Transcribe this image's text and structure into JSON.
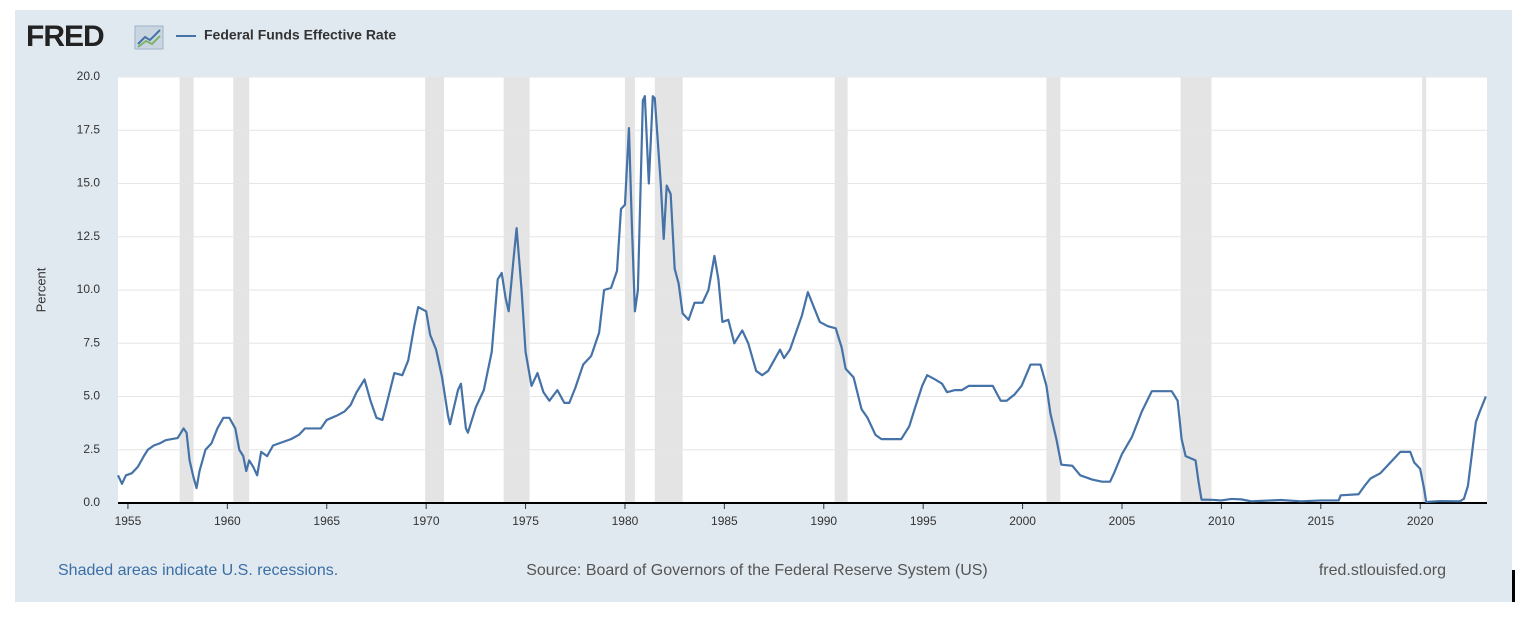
{
  "logo": "FRED",
  "chart_data": {
    "type": "line",
    "series": [
      {
        "name": "Federal Funds Effective Rate",
        "color": "#4572a7",
        "values": [
          1.3,
          0.9,
          1.3,
          1.4,
          1.7,
          2.2,
          2.5,
          2.7,
          2.8,
          2.95,
          3.0,
          3.05,
          3.5,
          3.3,
          2.0,
          1.2,
          0.7,
          1.5,
          2.5,
          2.8,
          3.5,
          4.0,
          4.0,
          3.5,
          2.5,
          2.2,
          1.5,
          2.0,
          1.7,
          1.3,
          2.4,
          2.2,
          2.7,
          2.8,
          2.9,
          3.0,
          3.2,
          3.5,
          3.5,
          3.5,
          3.9,
          4.1,
          4.3,
          4.6,
          5.2,
          5.8,
          4.8,
          4.0,
          3.9,
          4.6,
          6.1,
          6.0,
          6.7,
          8.3,
          9.2,
          9.0,
          7.9,
          7.2,
          5.9,
          4.1,
          3.7,
          5.3,
          5.6,
          3.5,
          3.3,
          4.5,
          5.3,
          7.1,
          10.5,
          10.8,
          9.6,
          9.0,
          11.5,
          12.9,
          10.0,
          7.1,
          5.5,
          6.1,
          5.2,
          4.8,
          5.3,
          4.7,
          4.7,
          5.4,
          6.5,
          6.9,
          8.0,
          10.0,
          10.1,
          10.9,
          13.8,
          14.0,
          17.6,
          13.0,
          9.0,
          10.0,
          18.9,
          19.1,
          15.0,
          19.1,
          19.0,
          15.0,
          12.4,
          14.9,
          14.5,
          11.0,
          10.3,
          8.9,
          8.6,
          9.4,
          9.4,
          10.0,
          11.6,
          10.5,
          8.5,
          8.6,
          7.5,
          8.1,
          7.5,
          6.2,
          6.0,
          6.2,
          6.7,
          7.2,
          6.8,
          7.2,
          8.0,
          8.8,
          9.9,
          9.2,
          8.5,
          8.3,
          8.2,
          7.3,
          6.3,
          5.9,
          4.4,
          4.0,
          3.2,
          3.0,
          3.0,
          3.0,
          3.6,
          4.5,
          5.5,
          6.0,
          5.8,
          5.6,
          5.2,
          5.3,
          5.3,
          5.5,
          5.5,
          5.5,
          4.8,
          4.8,
          5.1,
          5.5,
          6.5,
          6.5,
          5.5,
          4.2,
          3.0,
          1.8,
          1.75,
          1.3,
          1.1,
          1.0,
          1.0,
          1.4,
          2.3,
          3.1,
          4.3,
          5.25,
          5.25,
          4.8,
          3.0,
          2.2,
          2.0,
          1.0,
          0.16,
          0.15,
          0.12,
          0.19,
          0.17,
          0.08,
          0.1,
          0.14,
          0.08,
          0.12,
          0.12,
          0.36,
          0.41,
          0.8,
          1.15,
          1.4,
          1.9,
          2.4,
          2.4,
          1.9,
          1.6,
          0.65,
          0.05,
          0.09,
          0.08,
          0.2,
          0.8,
          2.3,
          3.8,
          4.3,
          5.0
        ]
      }
    ],
    "x": [
      1954.5,
      1954.7,
      1954.9,
      1955.2,
      1955.5,
      1955.8,
      1956.0,
      1956.3,
      1956.6,
      1956.9,
      1957.2,
      1957.5,
      1957.8,
      1957.95,
      1958.1,
      1958.3,
      1958.45,
      1958.6,
      1958.9,
      1959.2,
      1959.5,
      1959.8,
      1960.1,
      1960.4,
      1960.6,
      1960.8,
      1960.95,
      1961.1,
      1961.3,
      1961.5,
      1961.7,
      1962.0,
      1962.3,
      1962.6,
      1962.9,
      1963.2,
      1963.6,
      1963.9,
      1964.3,
      1964.7,
      1965.0,
      1965.5,
      1965.9,
      1966.2,
      1966.5,
      1966.9,
      1967.2,
      1967.5,
      1967.8,
      1968.0,
      1968.4,
      1968.8,
      1969.1,
      1969.4,
      1969.6,
      1970.0,
      1970.2,
      1970.5,
      1970.8,
      1971.1,
      1971.2,
      1971.6,
      1971.75,
      1972.0,
      1972.1,
      1972.5,
      1972.9,
      1973.3,
      1973.6,
      1973.8,
      1974.0,
      1974.15,
      1974.4,
      1974.55,
      1974.8,
      1975.0,
      1975.3,
      1975.6,
      1975.9,
      1976.2,
      1976.6,
      1976.95,
      1977.2,
      1977.5,
      1977.9,
      1978.3,
      1978.7,
      1978.95,
      1979.3,
      1979.6,
      1979.8,
      1980.0,
      1980.2,
      1980.35,
      1980.5,
      1980.65,
      1980.9,
      1981.0,
      1981.2,
      1981.4,
      1981.5,
      1981.8,
      1981.95,
      1982.1,
      1982.3,
      1982.5,
      1982.7,
      1982.9,
      1983.2,
      1983.5,
      1983.9,
      1984.2,
      1984.5,
      1984.7,
      1984.9,
      1985.2,
      1985.5,
      1985.9,
      1986.2,
      1986.6,
      1986.9,
      1987.2,
      1987.5,
      1987.8,
      1988.0,
      1988.3,
      1988.6,
      1988.9,
      1989.2,
      1989.5,
      1989.8,
      1990.2,
      1990.6,
      1990.9,
      1991.1,
      1991.5,
      1991.9,
      1992.2,
      1992.6,
      1992.9,
      1993.5,
      1993.9,
      1994.3,
      1994.6,
      1994.95,
      1995.2,
      1995.6,
      1995.95,
      1996.2,
      1996.6,
      1996.95,
      1997.3,
      1997.9,
      1998.5,
      1998.9,
      1999.2,
      1999.6,
      1999.95,
      2000.4,
      2000.9,
      2001.2,
      2001.4,
      2001.7,
      2001.95,
      2002.5,
      2002.9,
      2003.5,
      2004.0,
      2004.4,
      2004.6,
      2005.0,
      2005.5,
      2006.0,
      2006.5,
      2007.5,
      2007.8,
      2008.0,
      2008.2,
      2008.7,
      2008.85,
      2009.0,
      2009.5,
      2010.0,
      2010.5,
      2011.0,
      2011.5,
      2012.0,
      2013.0,
      2014.0,
      2015.0,
      2015.9,
      2016.0,
      2016.9,
      2017.2,
      2017.5,
      2018.0,
      2018.5,
      2019.0,
      2019.5,
      2019.7,
      2020.0,
      2020.2,
      2020.3,
      2021.0,
      2022.0,
      2022.2,
      2022.4,
      2022.6,
      2022.8,
      2023.0,
      2023.3
    ],
    "xlim": [
      1954.5,
      2023.36
    ],
    "xticks": [
      1955,
      1960,
      1965,
      1970,
      1975,
      1980,
      1985,
      1990,
      1995,
      2000,
      2005,
      2010,
      2015,
      2020
    ],
    "ylim": [
      0,
      20
    ],
    "yticks": [
      {
        "value": 0,
        "label": "0.0"
      },
      {
        "value": 2.5,
        "label": "2.5"
      },
      {
        "value": 5,
        "label": "5.0"
      },
      {
        "value": 7.5,
        "label": "7.5"
      },
      {
        "value": 10,
        "label": "10.0"
      },
      {
        "value": 12.5,
        "label": "12.5"
      },
      {
        "value": 15,
        "label": "15.0"
      },
      {
        "value": 17.5,
        "label": "17.5"
      },
      {
        "value": 20,
        "label": "20.0"
      }
    ],
    "ylabel": "Percent",
    "grid": true,
    "recessions": [
      [
        1957.6,
        1958.3
      ],
      [
        1960.3,
        1961.1
      ],
      [
        1969.95,
        1970.9
      ],
      [
        1973.9,
        1975.2
      ],
      [
        1980.0,
        1980.5
      ],
      [
        1981.5,
        1982.9
      ],
      [
        1990.55,
        1991.2
      ],
      [
        2001.2,
        2001.9
      ],
      [
        2007.95,
        2009.5
      ],
      [
        2020.1,
        2020.3
      ]
    ],
    "recession_note": "Shaded areas indicate U.S. recessions.",
    "source": "Source: Board of Governors of the Federal Reserve System (US)",
    "site": "fred.stlouisfed.org"
  }
}
